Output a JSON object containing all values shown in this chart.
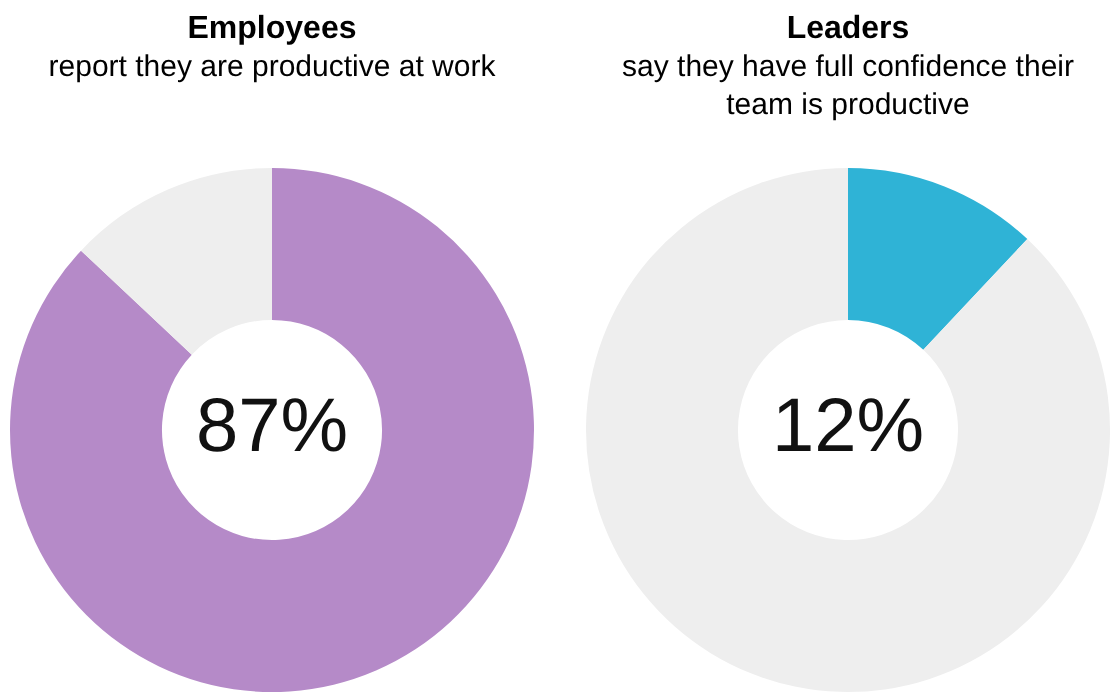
{
  "chart_data": [
    {
      "type": "donut",
      "title": "Employees",
      "subtitle": "report they are productive at work",
      "categories": [
        null,
        null
      ],
      "values": [
        87,
        13
      ],
      "colors": [
        "#b58ac8",
        "#eeeeee"
      ],
      "annotations": [
        "87%"
      ],
      "legend": false
    },
    {
      "type": "donut",
      "title": "Leaders",
      "subtitle": "say they have full confidence their team is productive",
      "categories": [
        null,
        null
      ],
      "values": [
        12,
        88
      ],
      "colors": [
        "#2fb3d6",
        "#eeeeee"
      ],
      "annotations": [
        "12%"
      ],
      "legend": false
    }
  ]
}
